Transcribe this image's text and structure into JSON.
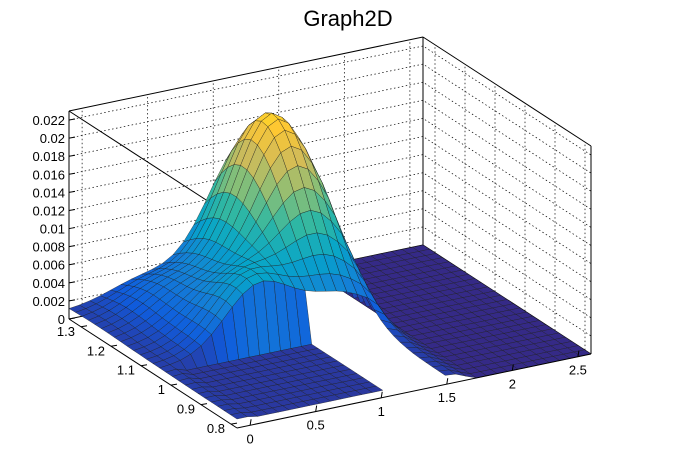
{
  "chart_data": {
    "type": "surface3d",
    "title": "Graph2D",
    "xlabel": "",
    "ylabel": "",
    "zlabel": "",
    "x_ticks": [
      "0",
      "0.5",
      "1",
      "1.5",
      "2",
      "2.5"
    ],
    "y_ticks": [
      "0.8",
      "0.9",
      "1",
      "1.1",
      "1.2",
      "1.3"
    ],
    "z_ticks": [
      "0",
      "0.002",
      "0.004",
      "0.006",
      "0.008",
      "0.01",
      "0.012",
      "0.014",
      "0.016",
      "0.018",
      "0.02",
      "0.022"
    ],
    "xlim": [
      -0.1,
      2.6
    ],
    "ylim": [
      0.78,
      1.34
    ],
    "zlim": [
      0,
      0.023
    ],
    "grid": true,
    "colormap": [
      "#352a87",
      "#0f5cdd",
      "#1481d6",
      "#06a4ca",
      "#2eb7a4",
      "#87bf77",
      "#d1bb59",
      "#fec832",
      "#f9fb0e"
    ]
  }
}
